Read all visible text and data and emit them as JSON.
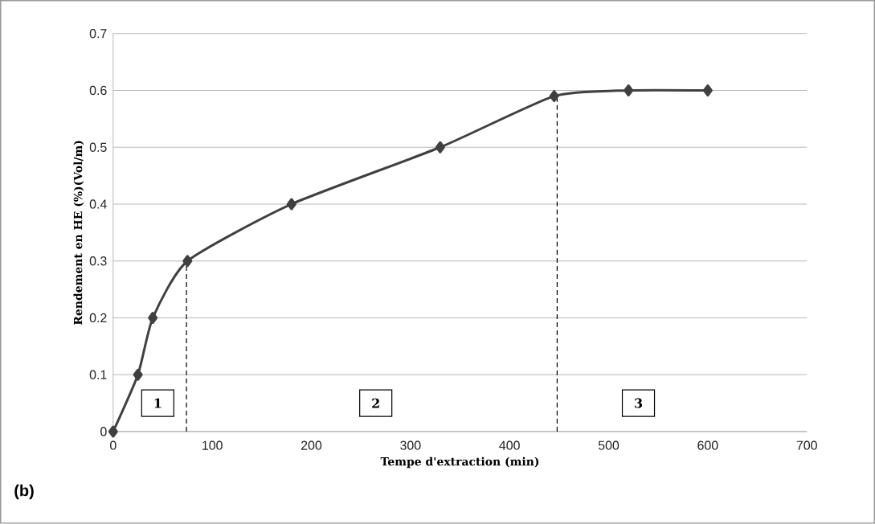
{
  "chart_data": {
    "type": "line",
    "xlabel": "Tempe d'extraction (min)",
    "ylabel": "Rendement en HE (%)(Vol/m)",
    "series": [
      {
        "color": "#404040",
        "marker": "diamond",
        "line_style": "solid",
        "x": [
          0,
          25,
          40,
          75,
          180,
          330,
          445,
          520,
          600
        ],
        "values": [
          0,
          0.1,
          0.2,
          0.3,
          0.4,
          0.5,
          0.59,
          0.6,
          0.6
        ]
      },
      {
        "color": "#000000",
        "marker": "none",
        "line_style": "dashed",
        "x": [
          74,
          74
        ],
        "values": [
          0,
          0.3
        ]
      },
      {
        "color": "#000000",
        "marker": "none",
        "line_style": "dashed",
        "x": [
          448,
          448
        ],
        "values": [
          0,
          0.59
        ]
      }
    ],
    "xlim": [
      0,
      700
    ],
    "xticks": [
      0,
      100,
      200,
      300,
      400,
      500,
      600,
      700
    ],
    "ylim": [
      0,
      0.7
    ],
    "yticks": [
      0,
      0.1,
      0.2,
      0.3,
      0.4,
      0.5,
      0.6,
      0.7
    ],
    "grid": "y",
    "annotations": [
      {
        "text": "1",
        "x": 45,
        "y": 0.05
      },
      {
        "text": "2",
        "x": 265,
        "y": 0.05
      },
      {
        "text": "3",
        "x": 530,
        "y": 0.05
      },
      "(b)"
    ]
  }
}
